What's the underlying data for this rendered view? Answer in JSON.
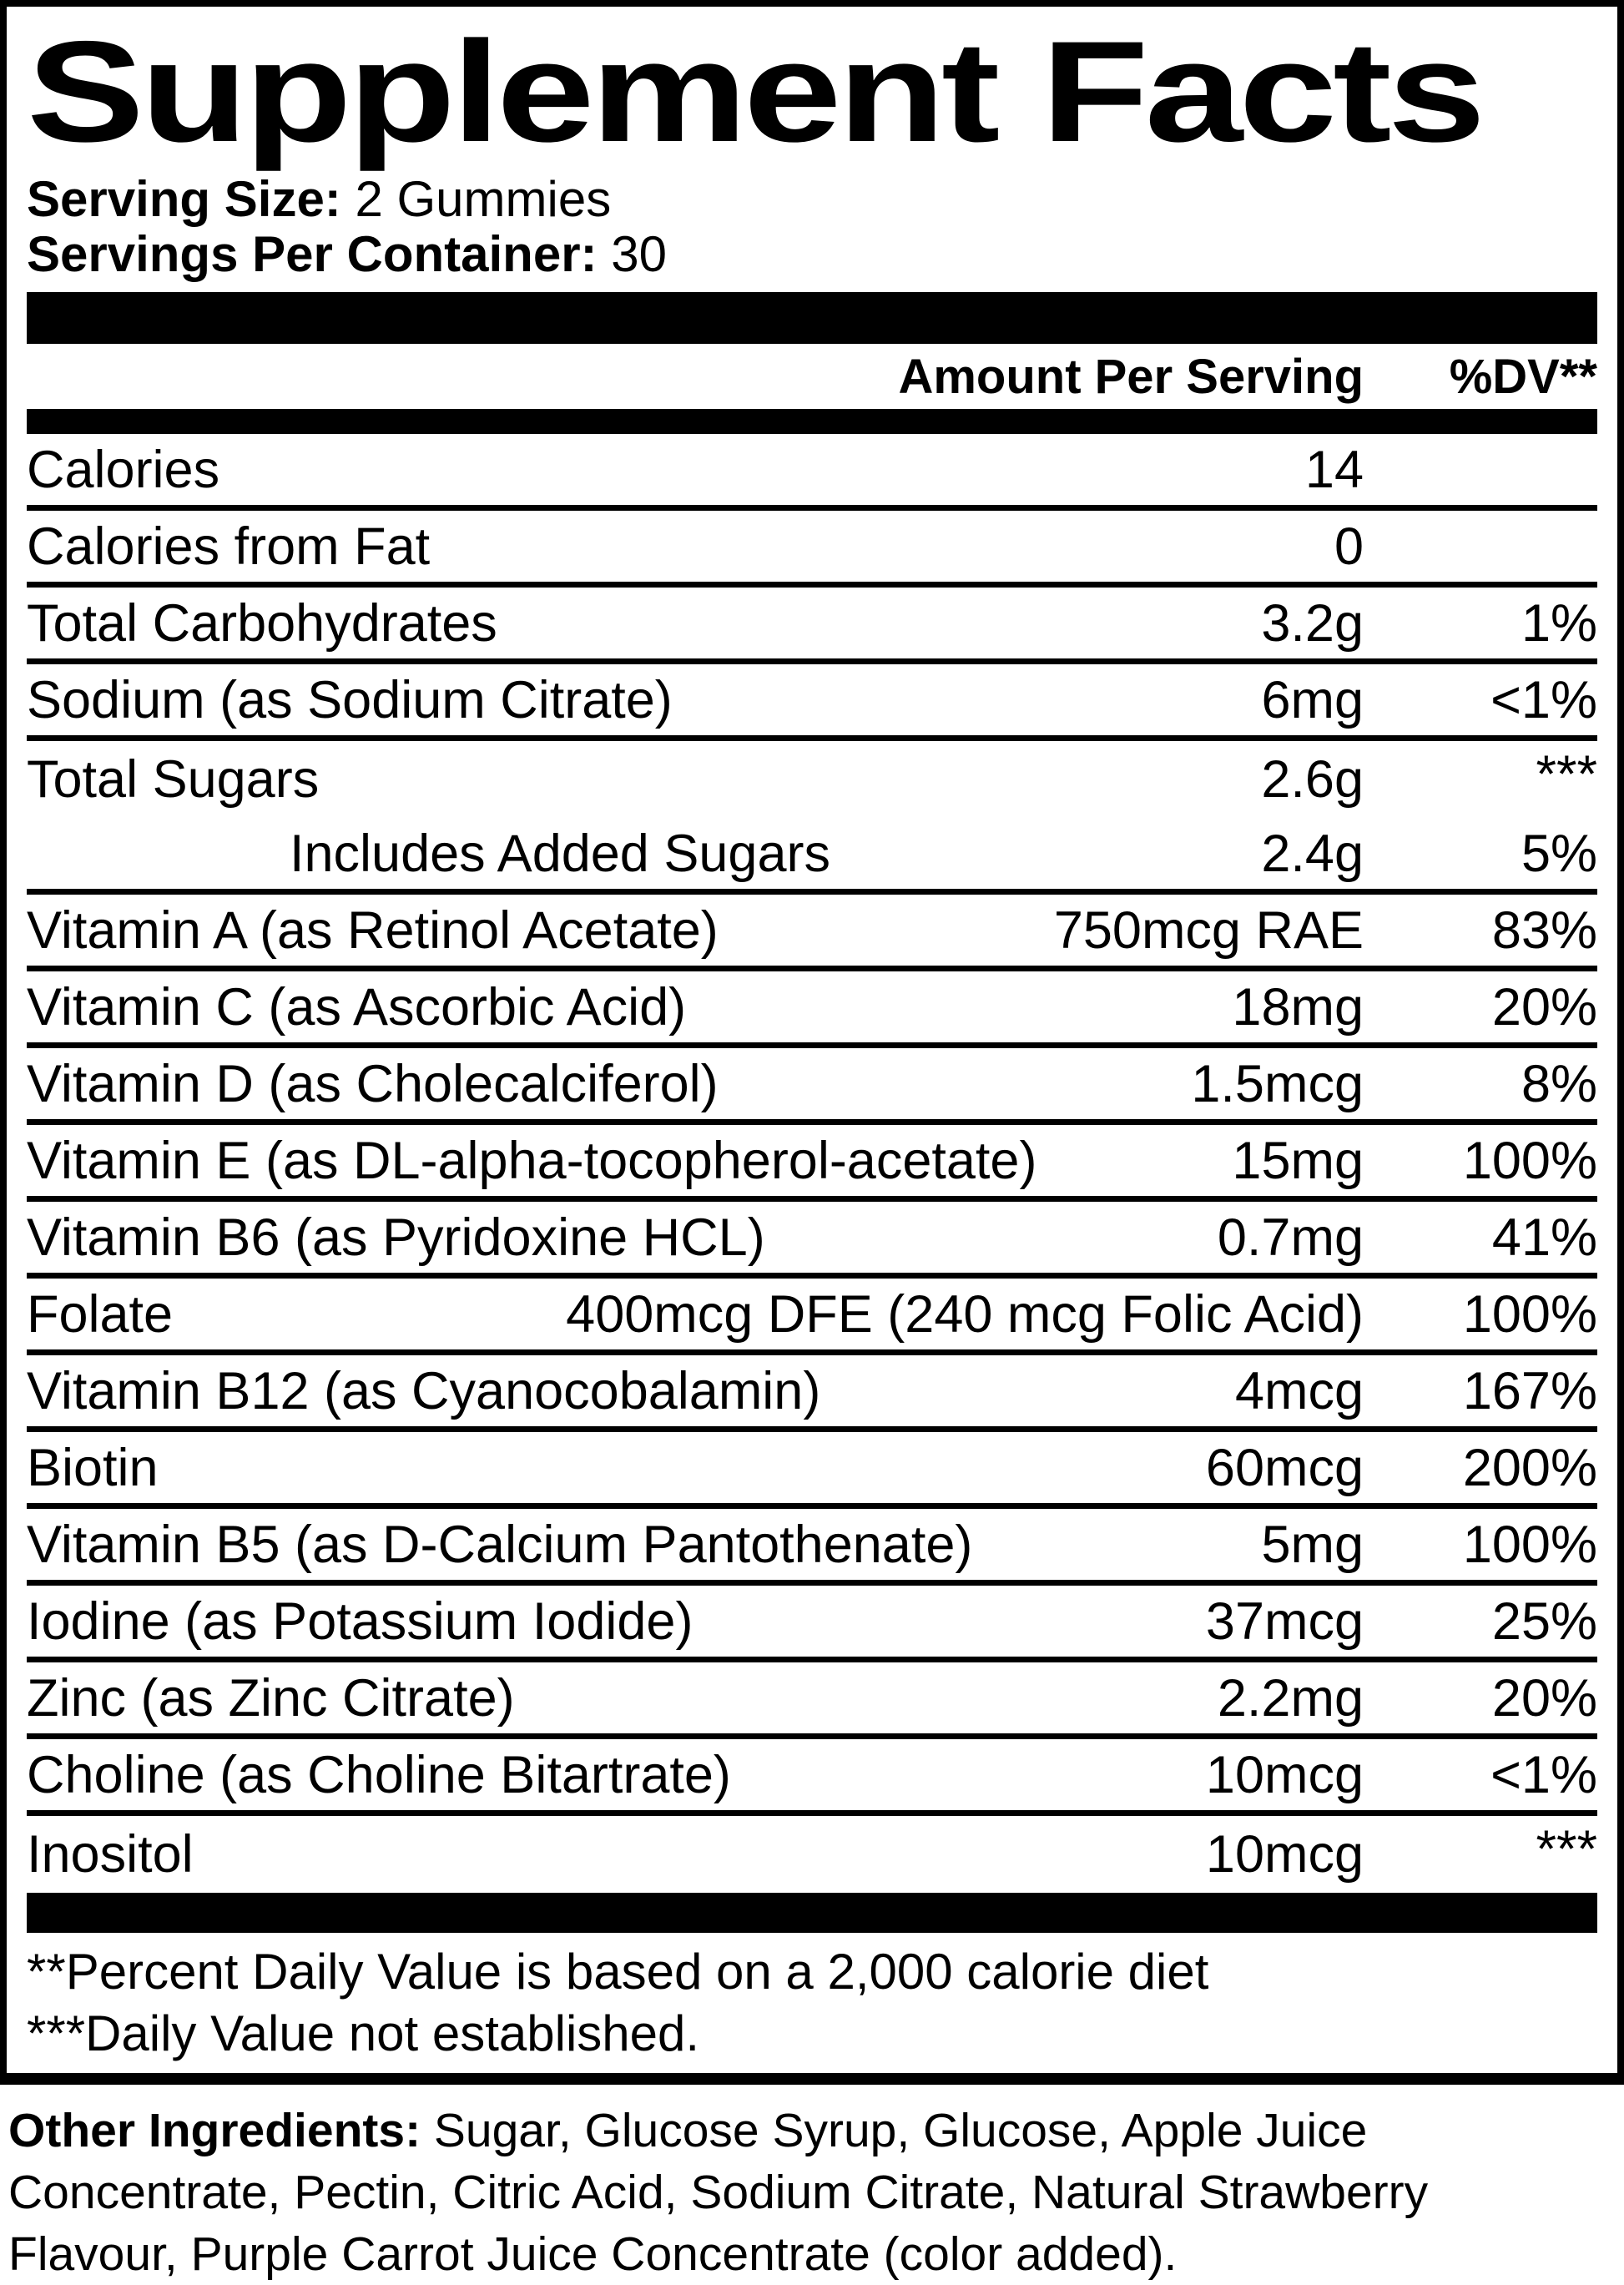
{
  "colors": {
    "ink": "#000000",
    "paper": "#ffffff"
  },
  "title": "Supplement Facts",
  "serving": {
    "size_label": "Serving Size:",
    "size_value": " 2 Gummies",
    "count_label": "Servings Per Container:",
    "count_value": " 30"
  },
  "table": {
    "amount_header": "Amount Per Serving",
    "dv_header": "%DV**",
    "rows": [
      {
        "name": "Calories",
        "amount": "14",
        "dv": "",
        "indent": false,
        "sep": true
      },
      {
        "name": "Calories from Fat",
        "amount": "0",
        "dv": "",
        "indent": false,
        "sep": true
      },
      {
        "name": "Total Carbohydrates",
        "amount": "3.2g",
        "dv": "1%",
        "indent": false,
        "sep": true
      },
      {
        "name": "Sodium (as Sodium Citrate)",
        "amount": "6mg",
        "dv": "<1%",
        "indent": false,
        "sep": true
      },
      {
        "name": "Total Sugars",
        "amount": "2.6g",
        "dv": "***",
        "indent": false,
        "sep": false
      },
      {
        "name": "Includes Added Sugars",
        "amount": "2.4g",
        "dv": "5%",
        "indent": true,
        "sep": true
      },
      {
        "name": "Vitamin A (as Retinol Acetate)",
        "amount": "750mcg RAE",
        "dv": "83%",
        "indent": false,
        "sep": true
      },
      {
        "name": "Vitamin C (as Ascorbic Acid)",
        "amount": "18mg",
        "dv": "20%",
        "indent": false,
        "sep": true
      },
      {
        "name": "Vitamin D (as Cholecalciferol)",
        "amount": "1.5mcg",
        "dv": "8%",
        "indent": false,
        "sep": true
      },
      {
        "name": "Vitamin E (as DL-alpha-tocopherol-acetate)",
        "amount": "15mg",
        "dv": "100%",
        "indent": false,
        "sep": true
      },
      {
        "name": "Vitamin B6 (as Pyridoxine HCL)",
        "amount": "0.7mg",
        "dv": "41%",
        "indent": false,
        "sep": true
      },
      {
        "name": "Folate",
        "amount": "400mcg DFE (240 mcg Folic Acid)",
        "dv": "100%",
        "indent": false,
        "sep": true
      },
      {
        "name": "Vitamin B12 (as Cyanocobalamin)",
        "amount": "4mcg",
        "dv": "167%",
        "indent": false,
        "sep": true
      },
      {
        "name": "Biotin",
        "amount": "60mcg",
        "dv": "200%",
        "indent": false,
        "sep": true
      },
      {
        "name": "Vitamin B5 (as D-Calcium Pantothenate)",
        "amount": "5mg",
        "dv": "100%",
        "indent": false,
        "sep": true
      },
      {
        "name": "Iodine (as Potassium Iodide)",
        "amount": "37mcg",
        "dv": "25%",
        "indent": false,
        "sep": true
      },
      {
        "name": "Zinc (as Zinc Citrate)",
        "amount": "2.2mg",
        "dv": "20%",
        "indent": false,
        "sep": true
      },
      {
        "name": "Choline (as Choline Bitartrate)",
        "amount": "10mcg",
        "dv": "<1%",
        "indent": false,
        "sep": true
      },
      {
        "name": "Inositol",
        "amount": "10mcg",
        "dv": "***",
        "indent": false,
        "sep": false
      }
    ]
  },
  "footnotes": [
    "**Percent Daily Value is based on a 2,000 calorie diet",
    "***Daily Value not established."
  ],
  "other_ingredients": {
    "label": "Other Ingredients:",
    "text": " Sugar, Glucose Syrup, Glucose, Apple Juice Concentrate, Pectin, Citric Acid, Sodium Citrate, Natural Strawberry Flavour, Purple Carrot Juice Concentrate (color added)."
  }
}
